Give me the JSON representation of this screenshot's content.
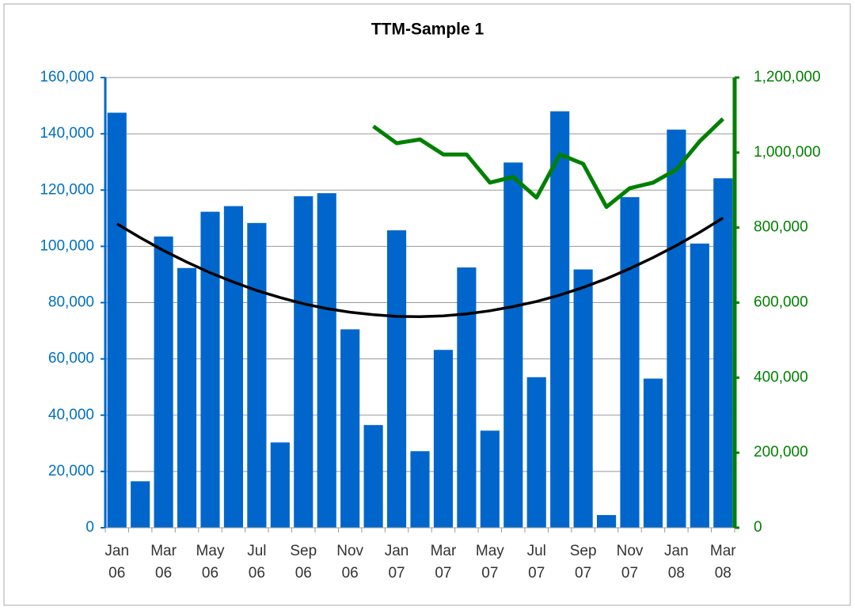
{
  "chart_data": {
    "type": "bar",
    "title": "TTM-Sample 1",
    "categories": [
      "Jan 06",
      null,
      "Mar 06",
      null,
      "May 06",
      null,
      "Jul 06",
      null,
      "Sep 06",
      null,
      "Nov 06",
      null,
      "Jan 07",
      null,
      "Mar 07",
      null,
      "May 07",
      null,
      "Jul 07",
      null,
      "Sep 07",
      null,
      "Nov 07",
      null,
      "Jan 08",
      null,
      "Mar 08"
    ],
    "series": [
      {
        "color": "#0066cc",
        "values": [
          147500,
          16500,
          103500,
          92300,
          112300,
          114300,
          108300,
          30300,
          117800,
          118900,
          70500,
          36500,
          105700,
          27200,
          63200,
          92500,
          34500,
          129800,
          53500,
          148000,
          91800,
          4500,
          117500,
          53000,
          141500,
          101000,
          124200
        ]
      },
      {
        "color": "#008000",
        "axis": "y2",
        "values": [
          null,
          null,
          null,
          null,
          null,
          null,
          null,
          null,
          null,
          null,
          null,
          1070000,
          1025000,
          1035000,
          995000,
          995000,
          920000,
          935000,
          880000,
          995000,
          970000,
          855000,
          905000,
          920000,
          955000,
          1030000,
          1090000
        ]
      }
    ],
    "trendline": {
      "color": "#000000",
      "values": [
        108000,
        103100,
        98500,
        94400,
        90600,
        87300,
        84300,
        81800,
        79600,
        77900,
        76600,
        75700,
        75100,
        75000,
        75300,
        76000,
        77100,
        78600,
        80400,
        82700,
        85400,
        88500,
        92100,
        96000,
        100300,
        105000,
        110100
      ]
    },
    "ylim": [
      0,
      160000
    ],
    "yticks": [
      0,
      {
        "value": 20000,
        "label": "20,000"
      },
      {
        "value": 40000,
        "label": "40,000"
      },
      {
        "value": 60000,
        "label": "60,000"
      },
      {
        "value": 80000,
        "label": "80,000"
      },
      {
        "value": 100000,
        "label": "100,000"
      },
      {
        "value": 120000,
        "label": "120,000"
      },
      {
        "value": 140000,
        "label": "140,000"
      },
      {
        "value": 160000,
        "label": "160,000"
      }
    ],
    "y2lim": [
      0,
      1200000
    ],
    "y2ticks": [
      0,
      {
        "value": 200000,
        "label": "200,000"
      },
      {
        "value": 400000,
        "label": "400,000"
      },
      {
        "value": 600000,
        "label": "600,000"
      },
      {
        "value": 800000,
        "label": "800,000"
      },
      {
        "value": 1000000,
        "label": "1,000,000"
      },
      {
        "value": 1200000,
        "label": "1,200,000"
      }
    ],
    "grid": true
  }
}
